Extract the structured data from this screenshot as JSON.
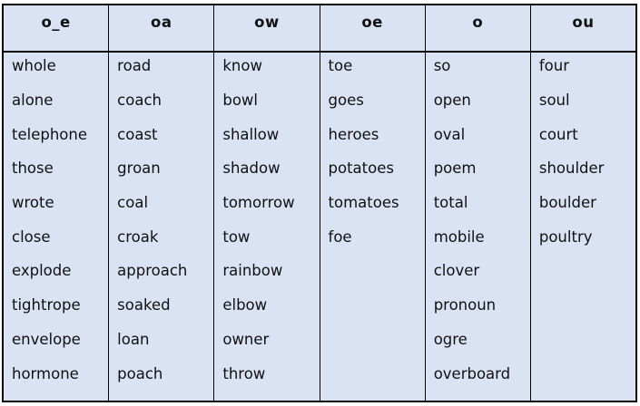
{
  "table": {
    "title_semantic": "long-o spelling patterns word sort",
    "colors": {
      "cell_bg": "#dae3f3",
      "border": "#000000",
      "page_bg": "#ffffff",
      "text": "#111111"
    },
    "columns": [
      {
        "header": "o_e",
        "words": [
          "whole",
          "alone",
          "telephone",
          "those",
          "wrote",
          "close",
          "explode",
          "tightrope",
          "envelope",
          "hormone"
        ]
      },
      {
        "header": "oa",
        "words": [
          "road",
          "coach",
          "coast",
          "groan",
          "coal",
          "croak",
          "approach",
          "soaked",
          "loan",
          "poach"
        ]
      },
      {
        "header": "ow",
        "words": [
          "know",
          "bowl",
          "shallow",
          "shadow",
          "tomorrow",
          "tow",
          "rainbow",
          "elbow",
          "owner",
          "throw"
        ]
      },
      {
        "header": "oe",
        "words": [
          "toe",
          "goes",
          "heroes",
          "potatoes",
          "tomatoes",
          "foe"
        ]
      },
      {
        "header": "o",
        "words": [
          "so",
          "open",
          "oval",
          "poem",
          "total",
          "mobile",
          "clover",
          "pronoun",
          "ogre",
          "overboard"
        ]
      },
      {
        "header": "ou",
        "words": [
          "four",
          "soul",
          "court",
          "shoulder",
          "boulder",
          "poultry"
        ]
      }
    ]
  }
}
